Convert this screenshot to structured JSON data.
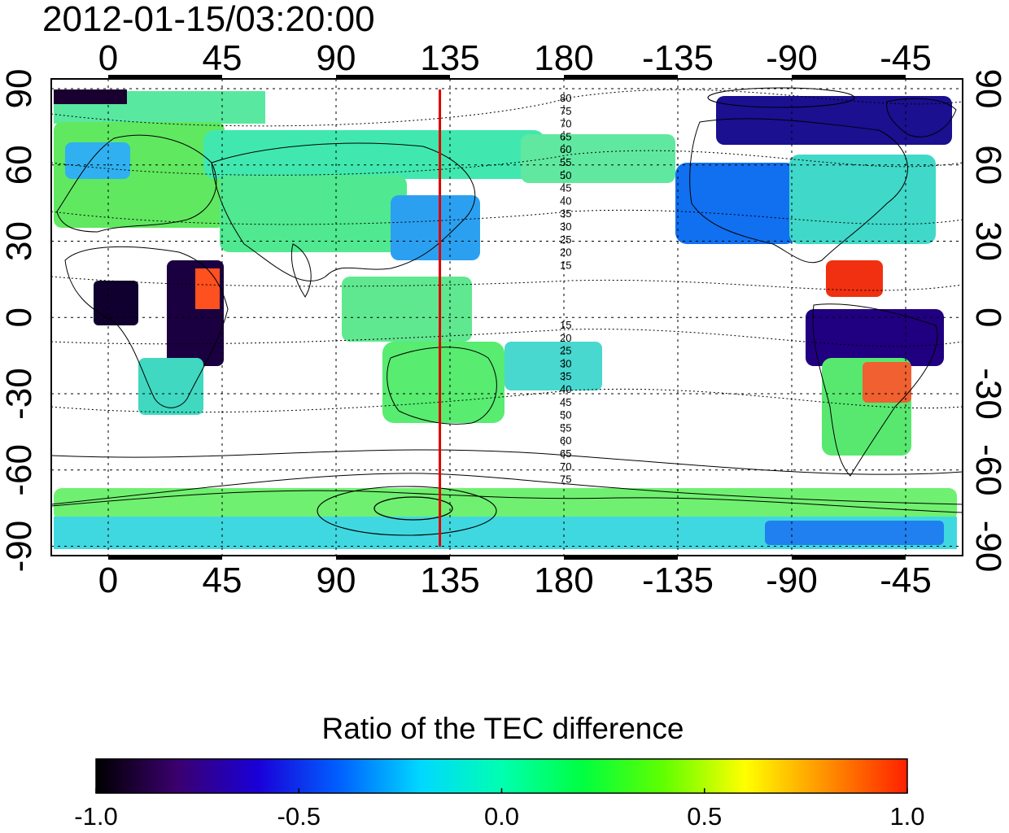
{
  "title": "2012-01-15/03:20:00",
  "map": {
    "projection": "equirectangular",
    "lon_center": 150,
    "x_axis_ticks": [
      "0",
      "45",
      "90",
      "135",
      "180",
      "-135",
      "-90",
      "-45"
    ],
    "x_axis_tick_lons": [
      0,
      45,
      90,
      135,
      180,
      225,
      270,
      315
    ],
    "y_axis_ticks_left": [
      "90",
      "60",
      "30",
      "0",
      "-30",
      "-60",
      "-90"
    ],
    "y_axis_ticks_right": [
      "90",
      "60",
      "30",
      "0",
      "-30",
      "-60",
      "-90"
    ],
    "y_axis_tick_lats": [
      90,
      60,
      30,
      0,
      -30,
      -60,
      -90
    ],
    "grid": "dotted",
    "meridian_line": {
      "lon": 131,
      "color": "#e00000"
    },
    "dip_contour_labels_north": [
      "80",
      "75",
      "70",
      "65",
      "60",
      "55",
      "50",
      "45",
      "40",
      "35",
      "30",
      "25",
      "20",
      "15"
    ],
    "dip_contour_labels_south": [
      "15",
      "20",
      "25",
      "30",
      "35",
      "40",
      "45",
      "50",
      "55",
      "60",
      "65",
      "70",
      "75"
    ]
  },
  "colorbar": {
    "title": "Ratio of the TEC difference",
    "tick_labels": [
      "-1.0",
      "-0.5",
      "0.0",
      "0.5",
      "1.0"
    ],
    "range": [
      -1.0,
      1.0
    ],
    "colormap": [
      "#000000",
      "#3a006e",
      "#1a00d8",
      "#0060ff",
      "#00d8ff",
      "#00ffb0",
      "#00ff40",
      "#60ff00",
      "#ffff00",
      "#ff9000",
      "#ff2000"
    ]
  }
}
